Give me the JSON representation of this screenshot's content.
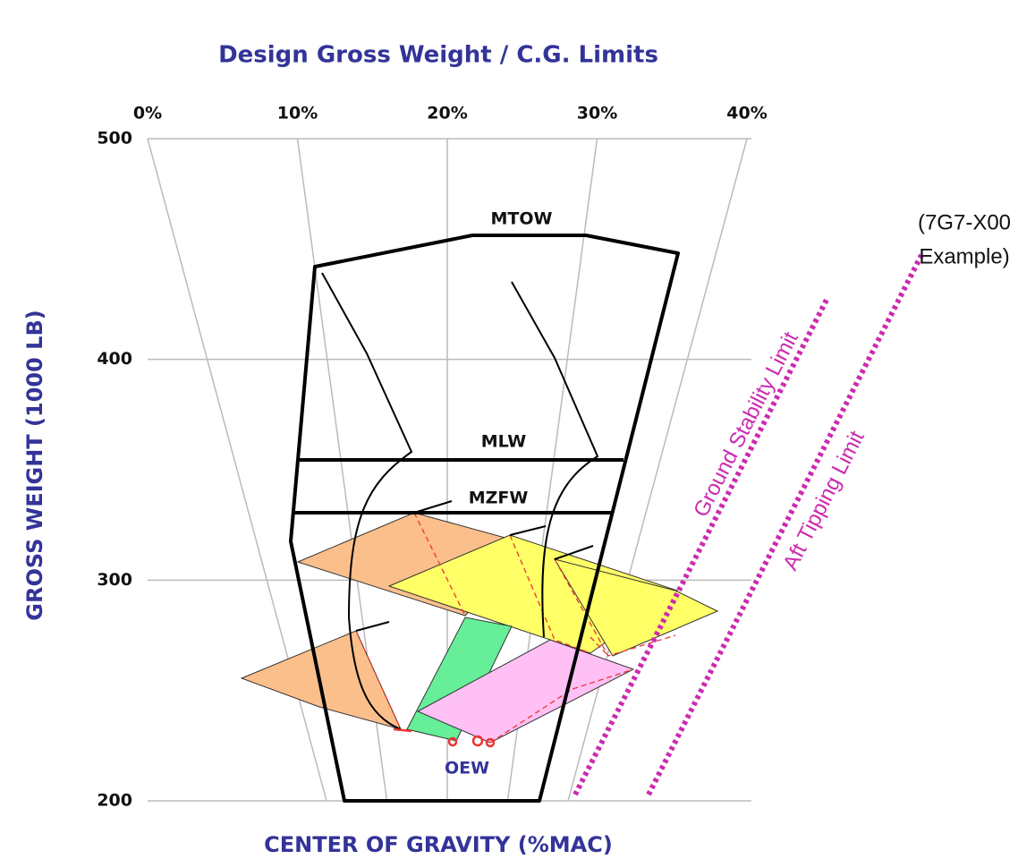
{
  "chart_data": {
    "type": "cg-envelope",
    "title": "Design Gross Weight / C.G. Limits",
    "x_label": "CENTER OF GRAVITY (%MAC)",
    "y_label": "GROSS WEIGHT (1000 LB)",
    "xlim": [
      0,
      40
    ],
    "xticks": [
      {
        "value": 0,
        "label": "0%"
      },
      {
        "value": 10,
        "label": "10%"
      },
      {
        "value": 20,
        "label": "20%"
      },
      {
        "value": 30,
        "label": "30%"
      },
      {
        "value": 40,
        "label": "40%"
      }
    ],
    "ylim": [
      200,
      500
    ],
    "yticks": [
      200,
      300,
      400,
      500
    ],
    "grid": true,
    "annotations": [
      "MTOW",
      "MLW",
      "MZFW",
      "OEW",
      "Ground Stability Limit",
      "Aft Tipping Limit",
      "(7G7-X00",
      "Example)"
    ]
  }
}
